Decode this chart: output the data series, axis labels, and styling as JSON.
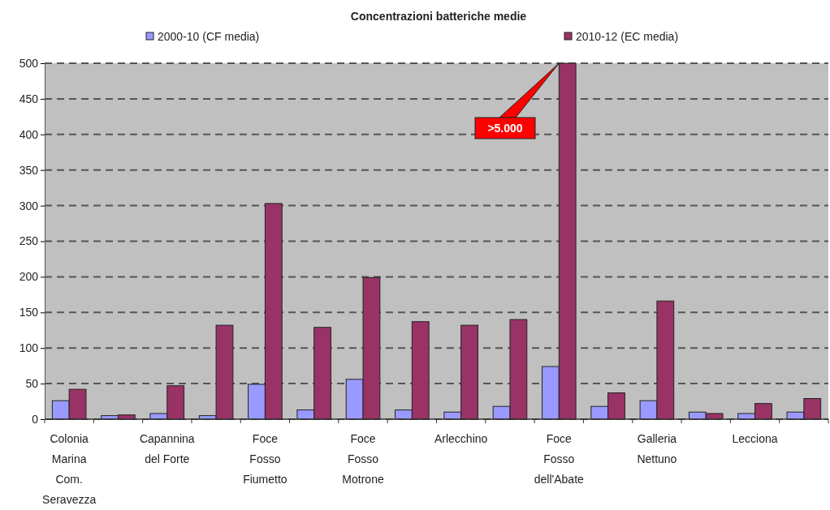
{
  "chart_data": {
    "type": "bar",
    "title": "Concentrazioni batteriche medie",
    "categories": [
      "Colonia Marina Com. Seravezza",
      null,
      "Capannina del Forte",
      null,
      "Foce Fosso Fiumetto",
      null,
      "Foce Fosso Motrone",
      null,
      "Arlecchino",
      null,
      "Foce Fosso dell'Abate",
      null,
      "Galleria Nettuno",
      null,
      "Lecciona",
      null
    ],
    "series": [
      {
        "name": "2000-10 (CF media)",
        "color": "#9999ff",
        "values": [
          26,
          5,
          8,
          5,
          49,
          13,
          56,
          13,
          10,
          18,
          74,
          18,
          26,
          10,
          8,
          10
        ]
      },
      {
        "name": "2010-12 (EC media)",
        "color": "#993366",
        "values": [
          42,
          6,
          47,
          132,
          303,
          129,
          199,
          137,
          132,
          140,
          500,
          37,
          166,
          8,
          22,
          29
        ]
      }
    ],
    "ylim": [
      0,
      500
    ],
    "yticks": [
      0,
      50,
      100,
      150,
      200,
      250,
      300,
      350,
      400,
      450,
      500
    ],
    "grid": "y",
    "legend": "top",
    "annotations": [
      ">5.000"
    ]
  }
}
